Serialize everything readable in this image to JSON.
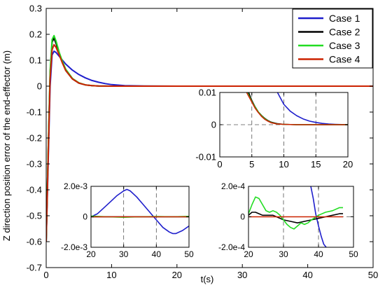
{
  "chart_data": [
    {
      "type": "line",
      "role": "main",
      "ylabel": "Z direction position error of the end-effector (m)",
      "xlabel": "t(s)",
      "xlim": [
        0,
        50
      ],
      "ylim": [
        -0.7,
        0.3
      ],
      "xticks": [
        0,
        10,
        20,
        30,
        40,
        50
      ],
      "xtick_labels": [
        "0",
        "10",
        "20",
        "30",
        "40",
        "50"
      ],
      "yticks": [
        -0.7,
        -0.6,
        -0.5,
        -0.4,
        -0.3,
        -0.2,
        -0.1,
        0,
        0.1,
        0.2,
        0.3
      ],
      "ytick_labels": [
        "-0.7",
        "-0.6",
        "-0.5",
        "-0.4",
        "-0.3",
        "-0.2",
        "-0.1",
        "0",
        "0.1",
        "0.2",
        "0.3"
      ],
      "grid": false,
      "legend": "top-right",
      "series": [
        {
          "name": "Case 1",
          "color": "#1f1fcc",
          "x": [
            0,
            0.3,
            0.6,
            0.9,
            1.2,
            1.5,
            2,
            2.5,
            3,
            4,
            5,
            6,
            7,
            8,
            9,
            10,
            11,
            12,
            15,
            20,
            30,
            40,
            50
          ],
          "y": [
            -0.6,
            -0.3,
            0.0,
            0.12,
            0.135,
            0.13,
            0.115,
            0.1,
            0.085,
            0.062,
            0.045,
            0.032,
            0.022,
            0.015,
            0.01,
            0.006,
            0.004,
            0.002,
            0.0005,
            0,
            0,
            0,
            0
          ]
        },
        {
          "name": "Case 2",
          "color": "#000000",
          "x": [
            0,
            0.3,
            0.6,
            0.9,
            1.2,
            1.5,
            2,
            2.5,
            3,
            4,
            5,
            6,
            7,
            8,
            10,
            20,
            30,
            40,
            50
          ],
          "y": [
            -0.6,
            -0.25,
            0.05,
            0.17,
            0.185,
            0.165,
            0.125,
            0.09,
            0.06,
            0.028,
            0.012,
            0.005,
            0.002,
            0.0005,
            0,
            0,
            0,
            0,
            0
          ]
        },
        {
          "name": "Case 3",
          "color": "#22dd22",
          "x": [
            0,
            0.3,
            0.6,
            0.9,
            1.2,
            1.5,
            2,
            2.5,
            3,
            4,
            5,
            6,
            7,
            8,
            10,
            20,
            30,
            40,
            50
          ],
          "y": [
            -0.6,
            -0.25,
            0.06,
            0.18,
            0.195,
            0.175,
            0.13,
            0.095,
            0.065,
            0.03,
            0.013,
            0.005,
            0.002,
            0.0005,
            0,
            0,
            0,
            0,
            0
          ]
        },
        {
          "name": "Case 4",
          "color": "#cc2200",
          "x": [
            0,
            0.3,
            0.6,
            0.9,
            1.2,
            1.5,
            2,
            2.5,
            3,
            4,
            5,
            6,
            7,
            8,
            10,
            20,
            30,
            40,
            50
          ],
          "y": [
            -0.6,
            -0.28,
            0.03,
            0.14,
            0.16,
            0.15,
            0.12,
            0.088,
            0.06,
            0.028,
            0.012,
            0.005,
            0.002,
            0.0005,
            0,
            0,
            0,
            0,
            0
          ]
        }
      ]
    },
    {
      "type": "line",
      "role": "inset-top-right",
      "xlim": [
        0,
        20
      ],
      "ylim": [
        -0.01,
        0.01
      ],
      "xticks": [
        0,
        5,
        10,
        15,
        20
      ],
      "xtick_labels": [
        "0",
        "5",
        "10",
        "15",
        "20"
      ],
      "yticks": [
        -0.01,
        0,
        0.01
      ],
      "ytick_labels": [
        "-0.01",
        "0",
        "0.01"
      ],
      "grid": true,
      "series": [
        {
          "name": "Case 1",
          "color": "#1f1fcc",
          "x": [
            9,
            10,
            11,
            12,
            13,
            14,
            15,
            16,
            17,
            18,
            19,
            20
          ],
          "y": [
            0.01,
            0.0063,
            0.0042,
            0.0028,
            0.0018,
            0.0011,
            0.0007,
            0.0004,
            0.0002,
            0.0001,
            5e-05,
            0
          ]
        },
        {
          "name": "Case 2",
          "color": "#000000",
          "x": [
            4.5,
            5,
            5.5,
            6,
            6.5,
            7,
            7.5,
            8,
            9,
            10,
            12,
            14,
            16,
            18,
            20
          ],
          "y": [
            0.01,
            0.0075,
            0.0056,
            0.004,
            0.0029,
            0.002,
            0.0013,
            0.0008,
            0.0003,
            0.0001,
            0,
            0,
            0,
            0,
            0
          ]
        },
        {
          "name": "Case 3",
          "color": "#22dd22",
          "x": [
            4.3,
            5,
            5.5,
            6,
            6.5,
            7,
            7.5,
            8,
            9,
            10,
            12,
            14,
            16,
            18,
            20
          ],
          "y": [
            0.01,
            0.0072,
            0.0055,
            0.004,
            0.0028,
            0.0019,
            0.0012,
            0.0007,
            0.0002,
            0.0001,
            0,
            0,
            0,
            0,
            0
          ]
        },
        {
          "name": "Case 4",
          "color": "#cc2200",
          "x": [
            4.2,
            5,
            5.5,
            6,
            6.5,
            7,
            7.5,
            8,
            9,
            10,
            12,
            14,
            16,
            18,
            20
          ],
          "y": [
            0.01,
            0.007,
            0.0052,
            0.0038,
            0.0026,
            0.0017,
            0.0011,
            0.0006,
            0.0002,
            0.0001,
            0,
            0,
            0,
            0,
            0
          ]
        }
      ]
    },
    {
      "type": "line",
      "role": "inset-bottom-left",
      "xlim": [
        20,
        50
      ],
      "ylim": [
        -0.002,
        0.002
      ],
      "xticks": [
        20,
        30,
        40,
        50
      ],
      "xtick_labels": [
        "20",
        "30",
        "40",
        "50"
      ],
      "yticks": [
        -0.002,
        0,
        0.002
      ],
      "ytick_labels": [
        "-2.0e-3",
        "0",
        "2.0e-3"
      ],
      "grid": true,
      "series": [
        {
          "name": "Case 1",
          "color": "#1f1fcc",
          "x": [
            20,
            22,
            24,
            26,
            28,
            30,
            31,
            32,
            34,
            36,
            38,
            40,
            42,
            44,
            45,
            46,
            48,
            50
          ],
          "y": [
            0,
            0.0002,
            0.0006,
            0.001,
            0.0014,
            0.0017,
            0.0018,
            0.0017,
            0.0013,
            0.0008,
            0.0003,
            -0.0002,
            -0.0007,
            -0.001,
            -0.0011,
            -0.0011,
            -0.0009,
            -0.0006
          ]
        },
        {
          "name": "Case 2",
          "color": "#000000",
          "x": [
            20,
            30,
            40,
            50
          ],
          "y": [
            0,
            0,
            0,
            0
          ]
        },
        {
          "name": "Case 3",
          "color": "#22dd22",
          "x": [
            20,
            25,
            30,
            35,
            40,
            45,
            50
          ],
          "y": [
            5e-05,
            0,
            -3e-05,
            0,
            2e-05,
            0,
            3e-05
          ]
        },
        {
          "name": "Case 4",
          "color": "#cc2200",
          "x": [
            20,
            30,
            40,
            50
          ],
          "y": [
            0,
            0,
            0,
            0
          ]
        }
      ]
    },
    {
      "type": "line",
      "role": "inset-bottom-right",
      "xlim": [
        20,
        50
      ],
      "ylim": [
        -0.0002,
        0.0002
      ],
      "xticks": [
        20,
        30,
        40,
        50
      ],
      "xtick_labels": [
        "20",
        "30",
        "40",
        "50"
      ],
      "yticks": [
        -0.0002,
        0,
        0.0002
      ],
      "ytick_labels": [
        "-2.0e-4",
        "0",
        "2.0e-4"
      ],
      "grid": true,
      "series": [
        {
          "name": "Case 1",
          "color": "#1f1fcc",
          "x": [
            37.8,
            38.5,
            39.2,
            40,
            40.8,
            41.5,
            42.2
          ],
          "y": [
            0.0002,
            0.00012,
            2e-05,
            -6e-05,
            -0.00013,
            -0.00018,
            -0.0002
          ]
        },
        {
          "name": "Case 2",
          "color": "#000000",
          "x": [
            20,
            21,
            22,
            23,
            24,
            25,
            26,
            27,
            28,
            29,
            30,
            32,
            34,
            36,
            38,
            40,
            42,
            44,
            46,
            47
          ],
          "y": [
            1e-05,
            3e-05,
            3e-05,
            2e-05,
            1e-05,
            1e-05,
            1e-05,
            1e-05,
            0.0,
            -1e-05,
            -2e-05,
            -3e-05,
            -4e-05,
            -3e-05,
            -2e-05,
            -1e-05,
            0,
            1e-05,
            2e-05,
            2e-05
          ]
        },
        {
          "name": "Case 3",
          "color": "#22dd22",
          "x": [
            20,
            21,
            22,
            23,
            24,
            25,
            26,
            27,
            28,
            29,
            30,
            31,
            32,
            33,
            34,
            35,
            36,
            37,
            38,
            40,
            42,
            44,
            46,
            47
          ],
          "y": [
            2e-05,
            8e-05,
            0.00013,
            0.00012,
            8e-05,
            4e-05,
            3e-05,
            4e-05,
            3e-05,
            1e-05,
            -2e-05,
            -5e-05,
            -7e-05,
            -8e-05,
            -6e-05,
            -4e-05,
            -5e-05,
            -4e-05,
            -2e-05,
            1e-05,
            3e-05,
            4e-05,
            6e-05,
            6e-05
          ]
        },
        {
          "name": "Case 4",
          "color": "#cc2200",
          "x": [
            20,
            25,
            30,
            35,
            40,
            45,
            47
          ],
          "y": [
            0,
            0,
            0,
            0,
            0,
            0,
            0
          ]
        }
      ]
    }
  ]
}
